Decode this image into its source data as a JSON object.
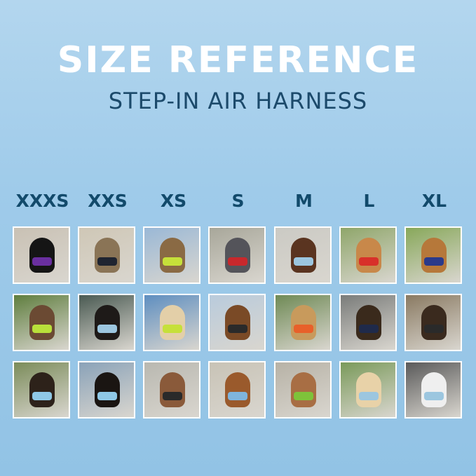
{
  "header": {
    "title": "SIZE REFERENCE",
    "subtitle": "STEP-IN AIR HARNESS"
  },
  "sizes": [
    {
      "label": "XXXS",
      "photos": [
        {
          "bg": "#c9c1b4",
          "pet": "#151515",
          "harness": "#6a2fa0"
        },
        {
          "bg": "#5f7e3e",
          "pet": "#6b4a33",
          "harness": "#b9e03a"
        },
        {
          "bg": "#7b8c5a",
          "pet": "#2d221a",
          "harness": "#8fc8e6"
        }
      ]
    },
    {
      "label": "XXS",
      "photos": [
        {
          "bg": "#cfc7b6",
          "pet": "#8a7456",
          "harness": "#1f2430"
        },
        {
          "bg": "#4a5a52",
          "pet": "#1e1a18",
          "harness": "#9cc6df"
        },
        {
          "bg": "#8aa2b8",
          "pet": "#1a1512",
          "harness": "#8fc8e6"
        }
      ]
    },
    {
      "label": "XS",
      "photos": [
        {
          "bg": "#9ab8d6",
          "pet": "#8a6a44",
          "harness": "#c6e03a"
        },
        {
          "bg": "#5e8ec0",
          "pet": "#e3cfa8",
          "harness": "#c6e03a"
        },
        {
          "bg": "#b9b8b0",
          "pet": "#8a5a3a",
          "harness": "#2a2a2a"
        }
      ]
    },
    {
      "label": "S",
      "photos": [
        {
          "bg": "#a8a79a",
          "pet": "#54545a",
          "harness": "#c8282c"
        },
        {
          "bg": "#b9cbdc",
          "pet": "#7a4a26",
          "harness": "#2a2a2a"
        },
        {
          "bg": "#c8c3b6",
          "pet": "#9a5a2c",
          "harness": "#7fb4dc"
        }
      ]
    },
    {
      "label": "M",
      "photos": [
        {
          "bg": "#cbcac4",
          "pet": "#5a3420",
          "harness": "#9cc6df"
        },
        {
          "bg": "#6f8a55",
          "pet": "#c89a5c",
          "harness": "#e8602a"
        },
        {
          "bg": "#b7b2a6",
          "pet": "#a86e44",
          "harness": "#7ec23a"
        }
      ]
    },
    {
      "label": "L",
      "photos": [
        {
          "bg": "#8fa66a",
          "pet": "#c8884a",
          "harness": "#d8302a"
        },
        {
          "bg": "#7a7c7a",
          "pet": "#3a2a1c",
          "harness": "#1f2a4a"
        },
        {
          "bg": "#7a9a5a",
          "pet": "#e8d2a8",
          "harness": "#9cc6df"
        }
      ]
    },
    {
      "label": "XL",
      "photos": [
        {
          "bg": "#88a85a",
          "pet": "#b6783a",
          "harness": "#2a3a8a"
        },
        {
          "bg": "#8a7a62",
          "pet": "#3a2a1e",
          "harness": "#2a2a2a"
        },
        {
          "bg": "#5a5a5a",
          "pet": "#efefef",
          "harness": "#9cc6df"
        }
      ]
    }
  ]
}
